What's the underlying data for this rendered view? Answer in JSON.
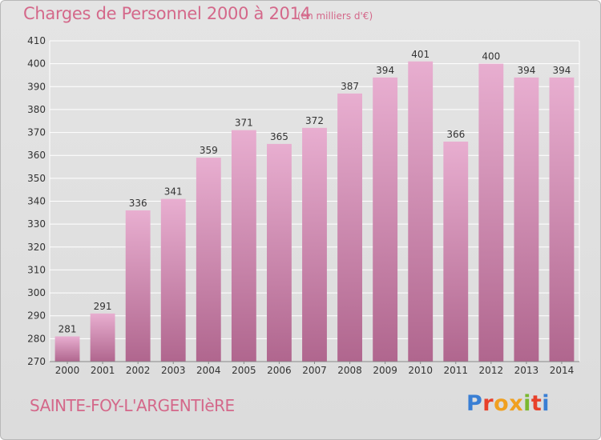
{
  "header": {
    "title": "Charges de Personnel 2000 à 2014",
    "subtitle": "(en milliers d'€)"
  },
  "footer": {
    "commune": "SAINTE-FOY-L'ARGENTIèRE",
    "logo_text": "Proxiti",
    "logo_colors": [
      "#3a7fd4",
      "#e8402a",
      "#f0a020",
      "#f0a020",
      "#7ab830",
      "#e8402a",
      "#3a7fd4"
    ]
  },
  "colors": {
    "bar_top": "#e8aed0",
    "bar_bottom": "#b0668e",
    "grid": "#ffffff",
    "axis_text": "#333333"
  },
  "chart_data": {
    "type": "bar",
    "categories": [
      "2000",
      "2001",
      "2002",
      "2003",
      "2004",
      "2005",
      "2006",
      "2007",
      "2008",
      "2009",
      "2010",
      "2011",
      "2012",
      "2013",
      "2014"
    ],
    "values": [
      281,
      291,
      336,
      341,
      359,
      371,
      365,
      372,
      387,
      394,
      401,
      366,
      400,
      394,
      394
    ],
    "ylim": [
      270,
      410
    ],
    "yticks": [
      270,
      280,
      290,
      300,
      310,
      320,
      330,
      340,
      350,
      360,
      370,
      380,
      390,
      400,
      410
    ],
    "grid": true,
    "data_labels": true
  }
}
